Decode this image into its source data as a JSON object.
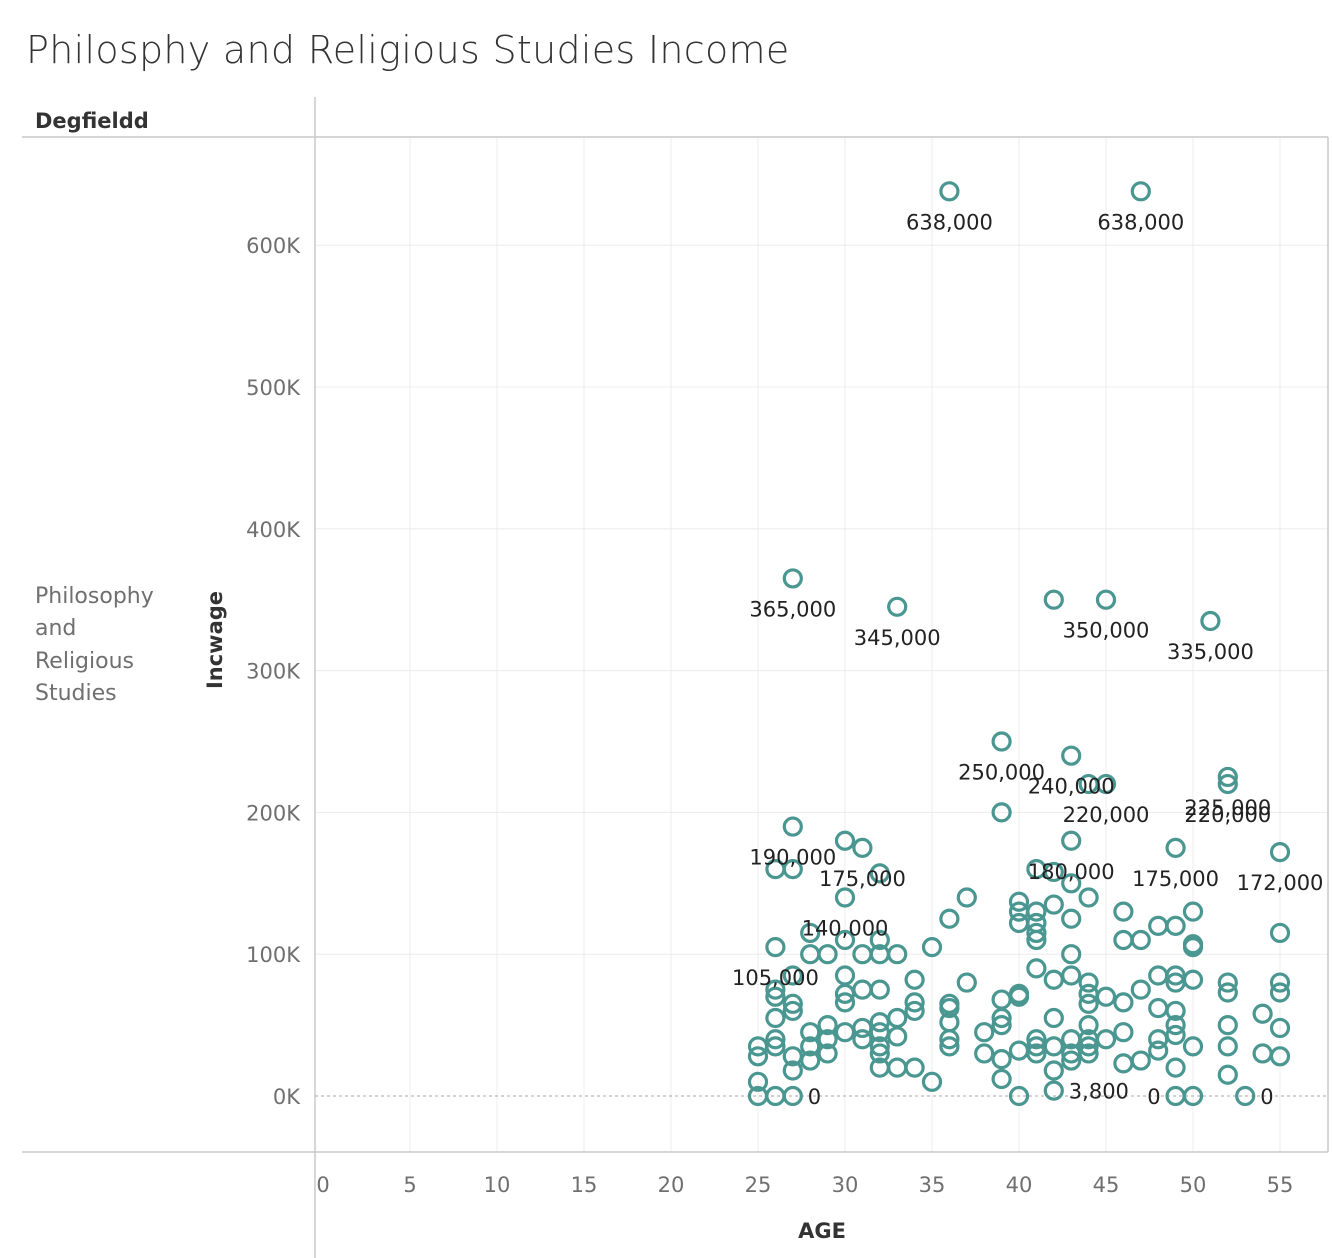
{
  "title": "Philosphy and Religious Studies Income",
  "column_header": "Degfieldd",
  "row_header_lines": [
    "Philosophy",
    "and",
    "Religious",
    "Studies"
  ],
  "colors": {
    "mark": "#4a9691",
    "grid": "#ececec",
    "axis": "#c8c8c8"
  },
  "chart_data": {
    "type": "scatter",
    "title": "Philosphy and Religious Studies Income",
    "xlabel": "AGE",
    "ylabel": "Incwage",
    "xlim": [
      0,
      56
    ],
    "ylim": [
      0,
      660000
    ],
    "x_ticks": [
      0,
      5,
      10,
      15,
      20,
      25,
      30,
      35,
      40,
      45,
      50,
      55
    ],
    "y_ticks": [
      0,
      100000,
      200000,
      300000,
      400000,
      500000,
      600000
    ],
    "y_tick_labels": [
      "0K",
      "100K",
      "200K",
      "300K",
      "400K",
      "500K",
      "600K"
    ],
    "grid": true,
    "marker": "open-circle",
    "points": [
      {
        "x": 36,
        "y": 638000,
        "label": "638,000"
      },
      {
        "x": 47,
        "y": 638000,
        "label": "638,000"
      },
      {
        "x": 27,
        "y": 365000,
        "label": "365,000"
      },
      {
        "x": 33,
        "y": 345000,
        "label": "345,000"
      },
      {
        "x": 42,
        "y": 350000
      },
      {
        "x": 45,
        "y": 350000,
        "label": "350,000"
      },
      {
        "x": 51,
        "y": 335000,
        "label": "335,000"
      },
      {
        "x": 39,
        "y": 250000,
        "label": "250,000"
      },
      {
        "x": 43,
        "y": 240000,
        "label": "240,000"
      },
      {
        "x": 52,
        "y": 225000,
        "label": "225,000"
      },
      {
        "x": 52,
        "y": 220000,
        "label": "220,000"
      },
      {
        "x": 44,
        "y": 220000
      },
      {
        "x": 45,
        "y": 220000,
        "label": "220,000"
      },
      {
        "x": 39,
        "y": 200000
      },
      {
        "x": 27,
        "y": 190000,
        "label": "190,000"
      },
      {
        "x": 30,
        "y": 180000
      },
      {
        "x": 31,
        "y": 175000,
        "label": "175,000"
      },
      {
        "x": 43,
        "y": 180000,
        "label": "180,000"
      },
      {
        "x": 49,
        "y": 175000,
        "label": "175,000"
      },
      {
        "x": 55,
        "y": 172000,
        "label": "172,000"
      },
      {
        "x": 26,
        "y": 160000
      },
      {
        "x": 27,
        "y": 160000
      },
      {
        "x": 32,
        "y": 157000
      },
      {
        "x": 41,
        "y": 160000
      },
      {
        "x": 42,
        "y": 158000
      },
      {
        "x": 43,
        "y": 150000
      },
      {
        "x": 30,
        "y": 140000,
        "label": "140,000"
      },
      {
        "x": 37,
        "y": 140000
      },
      {
        "x": 44,
        "y": 140000
      },
      {
        "x": 40,
        "y": 137000
      },
      {
        "x": 42,
        "y": 135000
      },
      {
        "x": 40,
        "y": 130000
      },
      {
        "x": 41,
        "y": 130000
      },
      {
        "x": 46,
        "y": 130000
      },
      {
        "x": 50,
        "y": 130000
      },
      {
        "x": 36,
        "y": 125000
      },
      {
        "x": 43,
        "y": 125000
      },
      {
        "x": 40,
        "y": 122000
      },
      {
        "x": 41,
        "y": 122000
      },
      {
        "x": 48,
        "y": 120000
      },
      {
        "x": 49,
        "y": 120000
      },
      {
        "x": 41,
        "y": 115000
      },
      {
        "x": 28,
        "y": 115000
      },
      {
        "x": 55,
        "y": 115000
      },
      {
        "x": 41,
        "y": 110000
      },
      {
        "x": 30,
        "y": 110000
      },
      {
        "x": 32,
        "y": 110000
      },
      {
        "x": 46,
        "y": 110000
      },
      {
        "x": 47,
        "y": 110000
      },
      {
        "x": 26,
        "y": 105000,
        "label": "105,000"
      },
      {
        "x": 35,
        "y": 105000
      },
      {
        "x": 50,
        "y": 107000
      },
      {
        "x": 50,
        "y": 105000
      },
      {
        "x": 28,
        "y": 100000
      },
      {
        "x": 29,
        "y": 100000
      },
      {
        "x": 31,
        "y": 100000
      },
      {
        "x": 32,
        "y": 100000
      },
      {
        "x": 33,
        "y": 100000
      },
      {
        "x": 43,
        "y": 100000
      },
      {
        "x": 41,
        "y": 90000
      },
      {
        "x": 27,
        "y": 85000
      },
      {
        "x": 30,
        "y": 85000
      },
      {
        "x": 43,
        "y": 85000
      },
      {
        "x": 48,
        "y": 85000
      },
      {
        "x": 49,
        "y": 85000
      },
      {
        "x": 34,
        "y": 82000
      },
      {
        "x": 42,
        "y": 82000
      },
      {
        "x": 50,
        "y": 82000
      },
      {
        "x": 37,
        "y": 80000
      },
      {
        "x": 44,
        "y": 80000
      },
      {
        "x": 49,
        "y": 80000
      },
      {
        "x": 52,
        "y": 80000
      },
      {
        "x": 55,
        "y": 80000
      },
      {
        "x": 26,
        "y": 75000
      },
      {
        "x": 31,
        "y": 75000
      },
      {
        "x": 32,
        "y": 75000
      },
      {
        "x": 47,
        "y": 75000
      },
      {
        "x": 26,
        "y": 70000
      },
      {
        "x": 30,
        "y": 72000
      },
      {
        "x": 40,
        "y": 72000
      },
      {
        "x": 44,
        "y": 72000
      },
      {
        "x": 52,
        "y": 73000
      },
      {
        "x": 55,
        "y": 73000
      },
      {
        "x": 39,
        "y": 68000
      },
      {
        "x": 40,
        "y": 70000
      },
      {
        "x": 45,
        "y": 70000
      },
      {
        "x": 27,
        "y": 65000
      },
      {
        "x": 30,
        "y": 66000
      },
      {
        "x": 34,
        "y": 66000
      },
      {
        "x": 36,
        "y": 65000
      },
      {
        "x": 44,
        "y": 65000
      },
      {
        "x": 46,
        "y": 66000
      },
      {
        "x": 27,
        "y": 60000
      },
      {
        "x": 34,
        "y": 60000
      },
      {
        "x": 36,
        "y": 62000
      },
      {
        "x": 48,
        "y": 62000
      },
      {
        "x": 49,
        "y": 60000
      },
      {
        "x": 54,
        "y": 58000
      },
      {
        "x": 26,
        "y": 55000
      },
      {
        "x": 33,
        "y": 55000
      },
      {
        "x": 39,
        "y": 55000
      },
      {
        "x": 42,
        "y": 55000
      },
      {
        "x": 32,
        "y": 52000
      },
      {
        "x": 36,
        "y": 52000
      },
      {
        "x": 39,
        "y": 50000
      },
      {
        "x": 44,
        "y": 50000
      },
      {
        "x": 49,
        "y": 50000
      },
      {
        "x": 52,
        "y": 50000
      },
      {
        "x": 55,
        "y": 48000
      },
      {
        "x": 29,
        "y": 50000
      },
      {
        "x": 31,
        "y": 48000
      },
      {
        "x": 28,
        "y": 45000
      },
      {
        "x": 30,
        "y": 45000
      },
      {
        "x": 32,
        "y": 45000
      },
      {
        "x": 33,
        "y": 42000
      },
      {
        "x": 38,
        "y": 45000
      },
      {
        "x": 46,
        "y": 45000
      },
      {
        "x": 49,
        "y": 43000
      },
      {
        "x": 26,
        "y": 40000
      },
      {
        "x": 29,
        "y": 40000
      },
      {
        "x": 31,
        "y": 40000
      },
      {
        "x": 36,
        "y": 40000
      },
      {
        "x": 41,
        "y": 40000
      },
      {
        "x": 43,
        "y": 40000
      },
      {
        "x": 44,
        "y": 40000
      },
      {
        "x": 45,
        "y": 40000
      },
      {
        "x": 48,
        "y": 40000
      },
      {
        "x": 25,
        "y": 35000
      },
      {
        "x": 26,
        "y": 35000
      },
      {
        "x": 28,
        "y": 35000
      },
      {
        "x": 32,
        "y": 35000
      },
      {
        "x": 36,
        "y": 35000
      },
      {
        "x": 40,
        "y": 32000
      },
      {
        "x": 41,
        "y": 35000
      },
      {
        "x": 42,
        "y": 35000
      },
      {
        "x": 44,
        "y": 35000
      },
      {
        "x": 50,
        "y": 35000
      },
      {
        "x": 52,
        "y": 35000
      },
      {
        "x": 25,
        "y": 28000
      },
      {
        "x": 27,
        "y": 28000
      },
      {
        "x": 29,
        "y": 30000
      },
      {
        "x": 32,
        "y": 30000
      },
      {
        "x": 38,
        "y": 30000
      },
      {
        "x": 41,
        "y": 30000
      },
      {
        "x": 43,
        "y": 30000
      },
      {
        "x": 44,
        "y": 30000
      },
      {
        "x": 48,
        "y": 32000
      },
      {
        "x": 54,
        "y": 30000
      },
      {
        "x": 55,
        "y": 28000
      },
      {
        "x": 28,
        "y": 25000
      },
      {
        "x": 39,
        "y": 26000
      },
      {
        "x": 43,
        "y": 25000
      },
      {
        "x": 46,
        "y": 23000
      },
      {
        "x": 47,
        "y": 25000
      },
      {
        "x": 32,
        "y": 20000
      },
      {
        "x": 33,
        "y": 20000
      },
      {
        "x": 34,
        "y": 20000
      },
      {
        "x": 49,
        "y": 20000
      },
      {
        "x": 27,
        "y": 18000
      },
      {
        "x": 42,
        "y": 18000
      },
      {
        "x": 52,
        "y": 15000
      },
      {
        "x": 25,
        "y": 10000
      },
      {
        "x": 35,
        "y": 10000
      },
      {
        "x": 39,
        "y": 12000
      },
      {
        "x": 25,
        "y": 0
      },
      {
        "x": 26,
        "y": 0
      },
      {
        "x": 27,
        "y": 0,
        "label": "0",
        "pos": "right"
      },
      {
        "x": 40,
        "y": 0
      },
      {
        "x": 42,
        "y": 3800,
        "label": "3,800",
        "pos": "right"
      },
      {
        "x": 49,
        "y": 0,
        "label": "0",
        "pos": "left"
      },
      {
        "x": 50,
        "y": 0
      },
      {
        "x": 53,
        "y": 0,
        "label": "0",
        "pos": "right"
      }
    ]
  }
}
